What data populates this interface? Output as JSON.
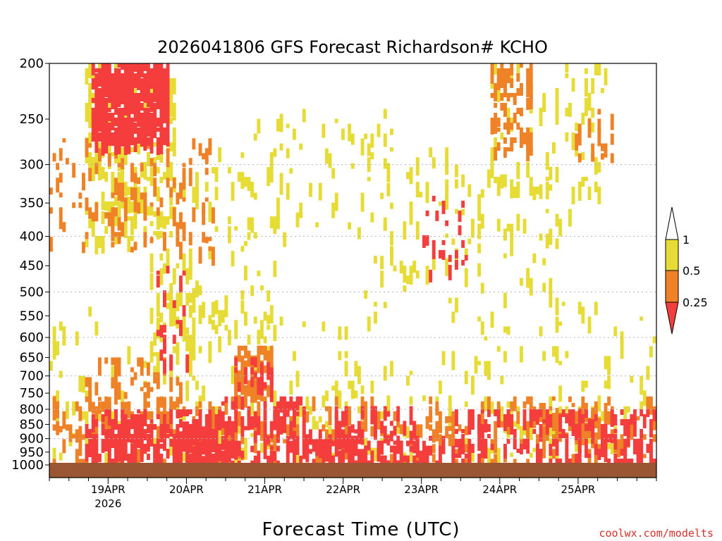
{
  "colors": {
    "ri_lt_0_25": "#f43d3d",
    "ri_0_25_0_5": "#ef8226",
    "ri_0_5_1": "#e7dc35",
    "ground": "#9a5533",
    "grid": "#b5b5b5",
    "credit": "#d8302b"
  },
  "chart_data": {
    "type": "heatmap",
    "title": "2026041806 GFS Forecast Richardson# KCHO",
    "xlabel": "Forecast Time (UTC)",
    "ylabel": "",
    "y_scale": "log-pressure (reversed)",
    "ylim": [
      1000,
      200
    ],
    "y_ticks": [
      200,
      250,
      300,
      350,
      400,
      450,
      500,
      550,
      600,
      650,
      700,
      750,
      800,
      850,
      900,
      950,
      1000
    ],
    "y_gridlines": [
      300,
      400,
      500,
      600,
      700,
      800,
      900
    ],
    "x_ticks": [
      {
        "label": "19APR",
        "sublabel": "2026",
        "hour": 18
      },
      {
        "label": "20APR",
        "sublabel": "",
        "hour": 42
      },
      {
        "label": "21APR",
        "sublabel": "",
        "hour": 66
      },
      {
        "label": "22APR",
        "sublabel": "",
        "hour": 90
      },
      {
        "label": "23APR",
        "sublabel": "",
        "hour": 114
      },
      {
        "label": "24APR",
        "sublabel": "",
        "hour": 138
      },
      {
        "label": "25APR",
        "sublabel": "",
        "hour": 162
      }
    ],
    "xlim_hours": [
      0,
      186
    ],
    "legend": {
      "placement": "right",
      "labels": [
        "1",
        "0.5",
        "0.25"
      ],
      "bins": [
        {
          "range": "0.5-1",
          "color": "#e7dc35"
        },
        {
          "range": "0.25-0.5",
          "color": "#ef8226"
        },
        {
          "range": "<0.25",
          "color": "#f43d3d"
        }
      ]
    },
    "regions": [
      {
        "h0": 12,
        "h1": 36,
        "p0": 200,
        "p1": 270,
        "class": 3,
        "density": 0.75
      },
      {
        "h0": 10,
        "h1": 38,
        "p0": 200,
        "p1": 400,
        "class": 1,
        "density": 0.22
      },
      {
        "h0": 0,
        "h1": 50,
        "p0": 270,
        "p1": 420,
        "class": 2,
        "density": 0.1
      },
      {
        "h0": 30,
        "h1": 44,
        "p0": 420,
        "p1": 700,
        "class": 1,
        "density": 0.16
      },
      {
        "h0": 32,
        "h1": 42,
        "p0": 450,
        "p1": 680,
        "class": 3,
        "density": 0.1
      },
      {
        "h0": 40,
        "h1": 70,
        "p0": 280,
        "p1": 600,
        "class": 1,
        "density": 0.06
      },
      {
        "h0": 60,
        "h1": 105,
        "p0": 240,
        "p1": 400,
        "class": 1,
        "density": 0.05
      },
      {
        "h0": 96,
        "h1": 124,
        "p0": 280,
        "p1": 500,
        "class": 1,
        "density": 0.05
      },
      {
        "h0": 114,
        "h1": 128,
        "p0": 340,
        "p1": 460,
        "class": 3,
        "density": 0.09
      },
      {
        "h0": 135,
        "h1": 148,
        "p0": 200,
        "p1": 280,
        "class": 2,
        "density": 0.28
      },
      {
        "h0": 135,
        "h1": 170,
        "p0": 200,
        "p1": 330,
        "class": 1,
        "density": 0.08
      },
      {
        "h0": 160,
        "h1": 172,
        "p0": 240,
        "p1": 300,
        "class": 2,
        "density": 0.14
      },
      {
        "h0": 120,
        "h1": 160,
        "p0": 300,
        "p1": 520,
        "class": 1,
        "density": 0.04
      },
      {
        "h0": 0,
        "h1": 186,
        "p0": 520,
        "p1": 760,
        "class": 1,
        "density": 0.03
      },
      {
        "h0": 10,
        "h1": 40,
        "p0": 650,
        "p1": 790,
        "class": 2,
        "density": 0.16
      },
      {
        "h0": 56,
        "h1": 68,
        "p0": 620,
        "p1": 760,
        "class": 2,
        "density": 0.38
      },
      {
        "h0": 56,
        "h1": 68,
        "p0": 650,
        "p1": 730,
        "class": 3,
        "density": 0.25
      },
      {
        "h0": 0,
        "h1": 186,
        "p0": 760,
        "p1": 860,
        "class": 2,
        "density": 0.13
      },
      {
        "h0": 0,
        "h1": 186,
        "p0": 760,
        "p1": 860,
        "class": 1,
        "density": 0.08
      },
      {
        "h0": 10,
        "h1": 52,
        "p0": 800,
        "p1": 1000,
        "class": 3,
        "density": 0.38
      },
      {
        "h0": 38,
        "h1": 52,
        "p0": 840,
        "p1": 990,
        "class": 3,
        "density": 0.45
      },
      {
        "h0": 52,
        "h1": 78,
        "p0": 760,
        "p1": 1000,
        "class": 3,
        "density": 0.34
      },
      {
        "h0": 78,
        "h1": 96,
        "p0": 850,
        "p1": 1000,
        "class": 3,
        "density": 0.28
      },
      {
        "h0": 86,
        "h1": 112,
        "p0": 790,
        "p1": 1000,
        "class": 3,
        "density": 0.3
      },
      {
        "h0": 112,
        "h1": 124,
        "p0": 890,
        "p1": 990,
        "class": 3,
        "density": 0.3
      },
      {
        "h0": 124,
        "h1": 186,
        "p0": 800,
        "p1": 1000,
        "class": 3,
        "density": 0.22
      },
      {
        "h0": 150,
        "h1": 170,
        "p0": 780,
        "p1": 880,
        "class": 2,
        "density": 0.35
      },
      {
        "h0": 0,
        "h1": 186,
        "p0": 850,
        "p1": 1000,
        "class": 2,
        "density": 0.1
      },
      {
        "h0": 0,
        "h1": 186,
        "p0": 880,
        "p1": 960,
        "class": 1,
        "density": 0.07
      }
    ]
  },
  "credit": "coolwx.com/modelts"
}
